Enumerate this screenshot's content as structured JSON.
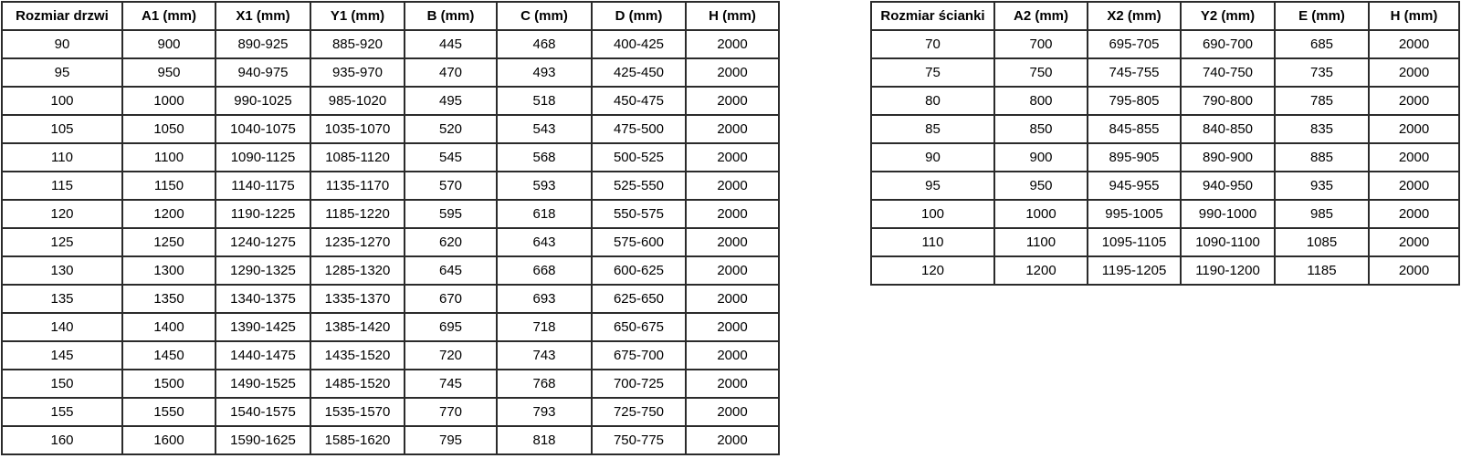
{
  "colors": {
    "background": "#ffffff",
    "border": "#2b2b2b",
    "text": "#000000"
  },
  "tables": [
    {
      "name": "door-dimensions",
      "headers": [
        "Rozmiar drzwi",
        "A1 (mm)",
        "X1 (mm)",
        "Y1 (mm)",
        "B (mm)",
        "C (mm)",
        "D (mm)",
        "H (mm)"
      ],
      "rows": [
        [
          "90",
          "900",
          "890-925",
          "885-920",
          "445",
          "468",
          "400-425",
          "2000"
        ],
        [
          "95",
          "950",
          "940-975",
          "935-970",
          "470",
          "493",
          "425-450",
          "2000"
        ],
        [
          "100",
          "1000",
          "990-1025",
          "985-1020",
          "495",
          "518",
          "450-475",
          "2000"
        ],
        [
          "105",
          "1050",
          "1040-1075",
          "1035-1070",
          "520",
          "543",
          "475-500",
          "2000"
        ],
        [
          "110",
          "1100",
          "1090-1125",
          "1085-1120",
          "545",
          "568",
          "500-525",
          "2000"
        ],
        [
          "115",
          "1150",
          "1140-1175",
          "1135-1170",
          "570",
          "593",
          "525-550",
          "2000"
        ],
        [
          "120",
          "1200",
          "1190-1225",
          "1185-1220",
          "595",
          "618",
          "550-575",
          "2000"
        ],
        [
          "125",
          "1250",
          "1240-1275",
          "1235-1270",
          "620",
          "643",
          "575-600",
          "2000"
        ],
        [
          "130",
          "1300",
          "1290-1325",
          "1285-1320",
          "645",
          "668",
          "600-625",
          "2000"
        ],
        [
          "135",
          "1350",
          "1340-1375",
          "1335-1370",
          "670",
          "693",
          "625-650",
          "2000"
        ],
        [
          "140",
          "1400",
          "1390-1425",
          "1385-1420",
          "695",
          "718",
          "650-675",
          "2000"
        ],
        [
          "145",
          "1450",
          "1440-1475",
          "1435-1520",
          "720",
          "743",
          "675-700",
          "2000"
        ],
        [
          "150",
          "1500",
          "1490-1525",
          "1485-1520",
          "745",
          "768",
          "700-725",
          "2000"
        ],
        [
          "155",
          "1550",
          "1540-1575",
          "1535-1570",
          "770",
          "793",
          "725-750",
          "2000"
        ],
        [
          "160",
          "1600",
          "1590-1625",
          "1585-1620",
          "795",
          "818",
          "750-775",
          "2000"
        ]
      ]
    },
    {
      "name": "wall-panel-dimensions",
      "headers": [
        "Rozmiar ścianki",
        "A2 (mm)",
        "X2 (mm)",
        "Y2 (mm)",
        "E (mm)",
        "H (mm)"
      ],
      "rows": [
        [
          "70",
          "700",
          "695-705",
          "690-700",
          "685",
          "2000"
        ],
        [
          "75",
          "750",
          "745-755",
          "740-750",
          "735",
          "2000"
        ],
        [
          "80",
          "800",
          "795-805",
          "790-800",
          "785",
          "2000"
        ],
        [
          "85",
          "850",
          "845-855",
          "840-850",
          "835",
          "2000"
        ],
        [
          "90",
          "900",
          "895-905",
          "890-900",
          "885",
          "2000"
        ],
        [
          "95",
          "950",
          "945-955",
          "940-950",
          "935",
          "2000"
        ],
        [
          "100",
          "1000",
          "995-1005",
          "990-1000",
          "985",
          "2000"
        ],
        [
          "110",
          "1100",
          "1095-1105",
          "1090-1100",
          "1085",
          "2000"
        ],
        [
          "120",
          "1200",
          "1195-1205",
          "1190-1200",
          "1185",
          "2000"
        ]
      ]
    }
  ]
}
